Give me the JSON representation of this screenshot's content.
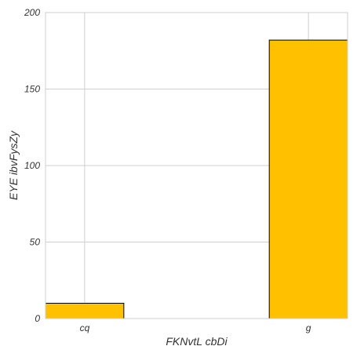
{
  "chart_data": {
    "type": "bar",
    "categories": [
      "cq",
      "g"
    ],
    "values": [
      10,
      182
    ],
    "xlabel": "FKNvtL  cbDi",
    "ylabel": "EYE ibvFysZy",
    "ylim": [
      0,
      200
    ],
    "yticks": [
      0,
      50,
      100,
      150,
      200
    ],
    "grid": true,
    "bar_color": "#ffc000",
    "bar_edge_color": "#000000",
    "grid_color": "#cfcfcf"
  }
}
